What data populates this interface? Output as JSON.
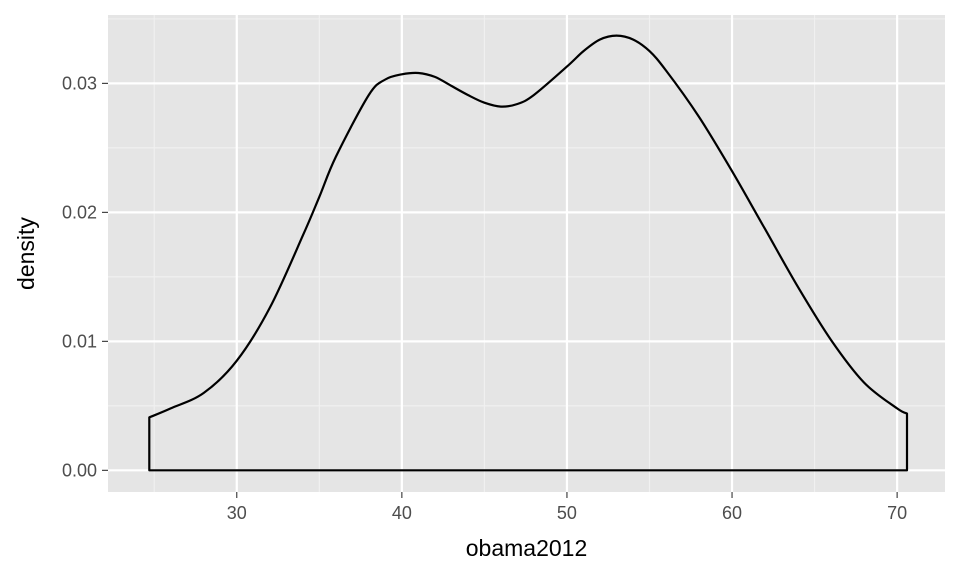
{
  "chart_data": {
    "type": "area",
    "title": "",
    "xlabel": "obama2012",
    "ylabel": "density",
    "xlim": [
      22.2,
      72.9
    ],
    "ylim": [
      -0.00168,
      0.0353
    ],
    "x_ticks": [
      30,
      40,
      50,
      60,
      70
    ],
    "y_ticks": [
      0.0,
      0.01,
      0.02,
      0.03
    ],
    "x_tick_labels": [
      "30",
      "40",
      "50",
      "60",
      "70"
    ],
    "y_tick_labels": [
      "0.00",
      "0.01",
      "0.02",
      "0.03"
    ],
    "grid": true,
    "series": [
      {
        "x": [
          24.7,
          26,
          28,
          30,
          32,
          34,
          35,
          36,
          38,
          39,
          40,
          41,
          42,
          43,
          44,
          45,
          46,
          47,
          48,
          50,
          51,
          52,
          53,
          54,
          55,
          56,
          58,
          60,
          62,
          64,
          66,
          68,
          70,
          70.6
        ],
        "y": [
          0.0041,
          0.0048,
          0.006,
          0.0085,
          0.0126,
          0.0182,
          0.0212,
          0.0243,
          0.0291,
          0.0303,
          0.0307,
          0.0308,
          0.0305,
          0.0298,
          0.0291,
          0.0285,
          0.0282,
          0.0284,
          0.0291,
          0.0313,
          0.0325,
          0.0334,
          0.0337,
          0.0334,
          0.0325,
          0.031,
          0.0274,
          0.0232,
          0.0187,
          0.0142,
          0.0101,
          0.0068,
          0.0048,
          0.0044
        ]
      }
    ]
  },
  "colors": {
    "panel_background": "#e5e5e5",
    "major_grid": "#ffffff",
    "minor_grid": "#f1f1f1",
    "line": "#000000",
    "tick_text": "#4d4d4d"
  }
}
